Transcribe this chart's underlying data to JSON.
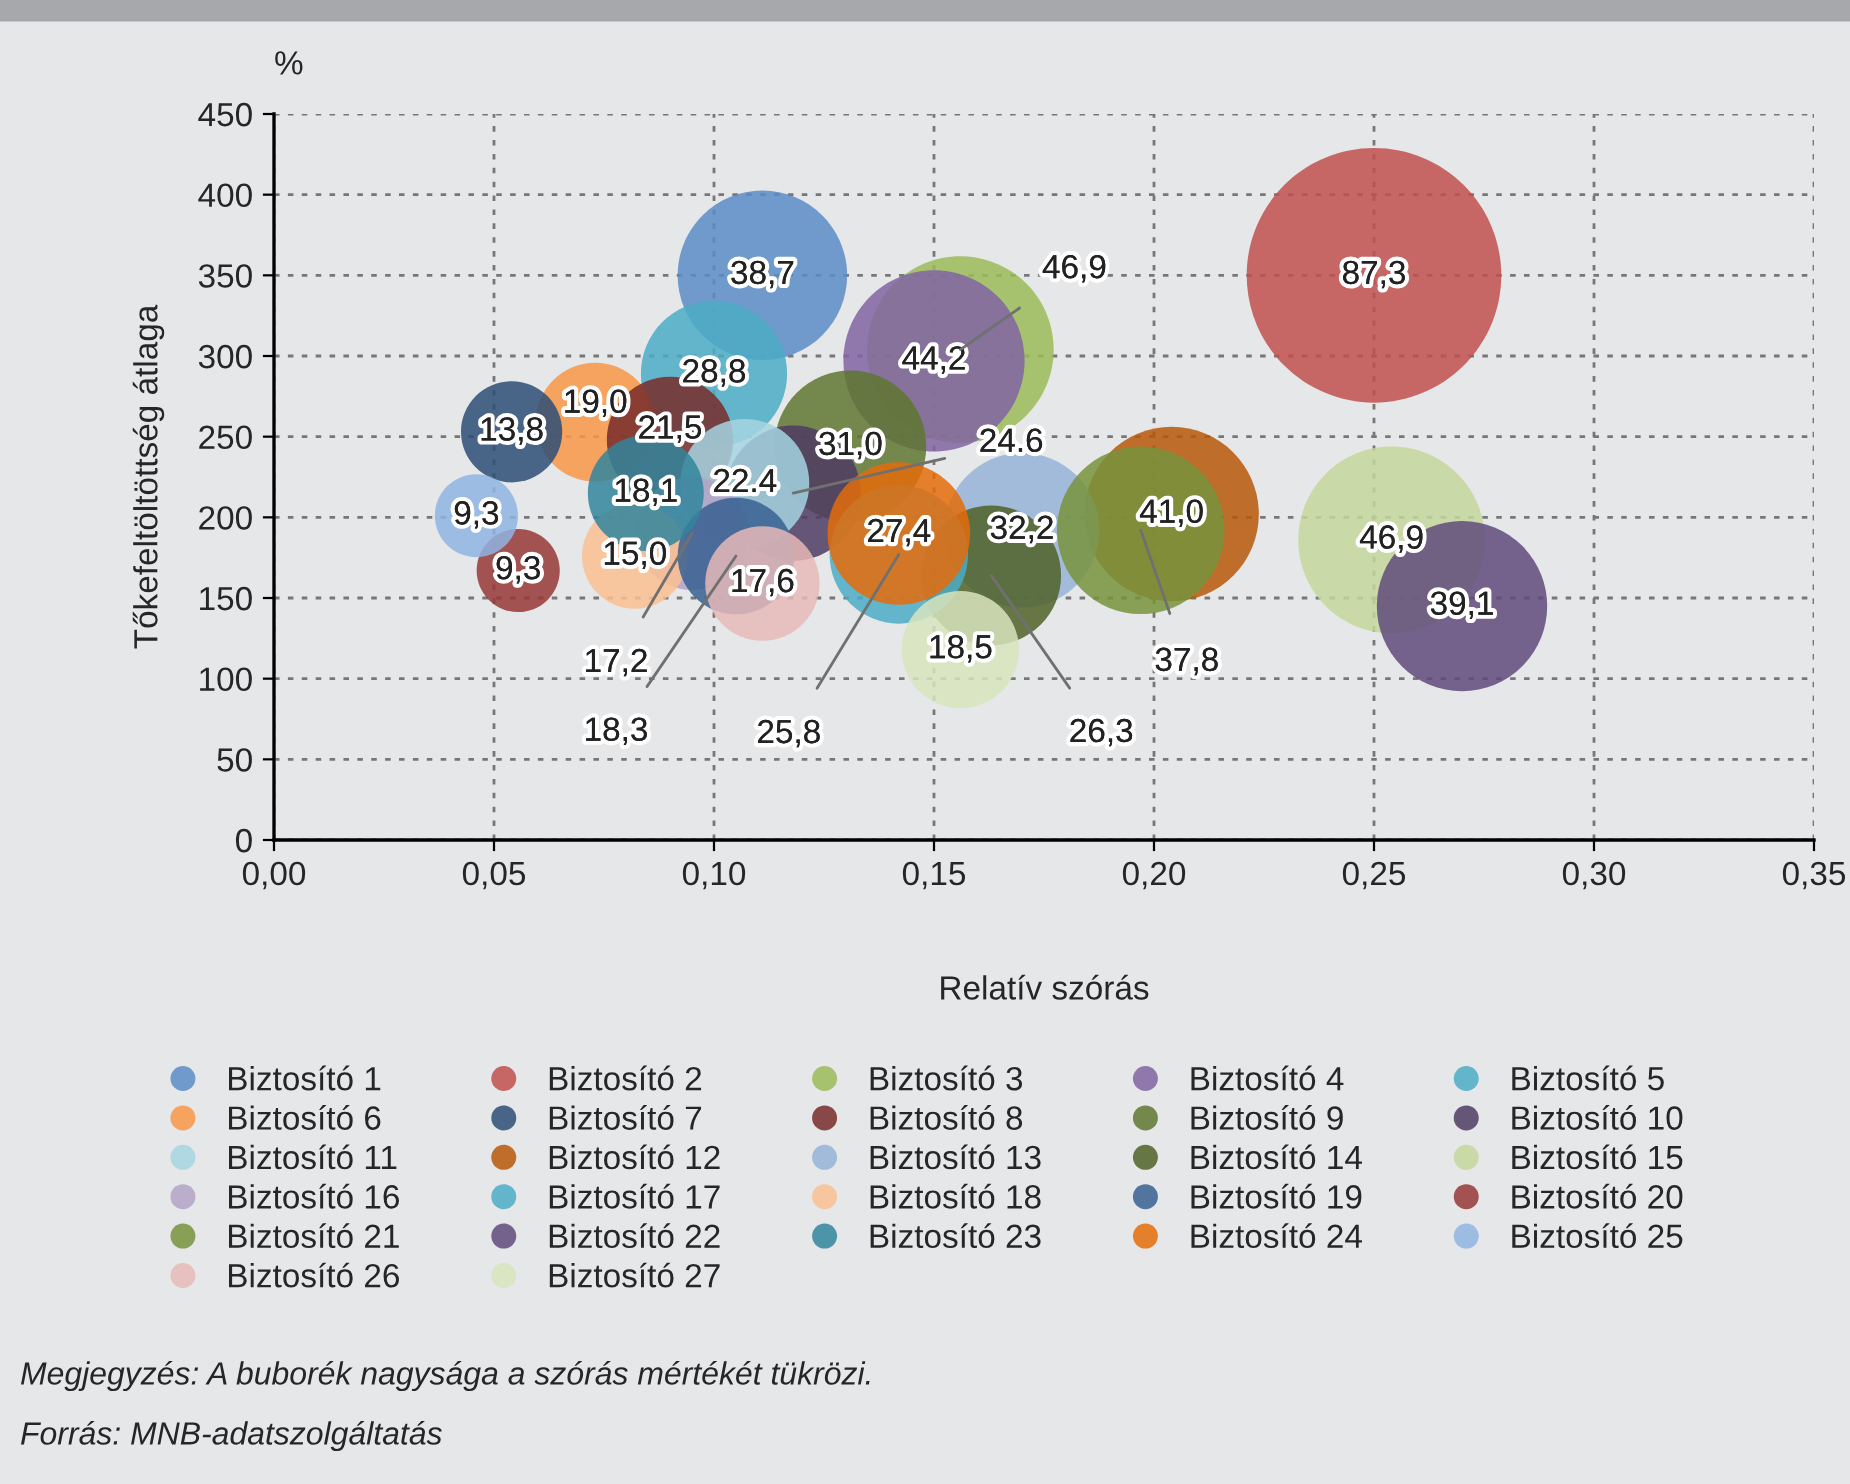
{
  "chart_data": {
    "type": "bubble",
    "xlabel": "Relatív szórás",
    "ylabel": "Tőkefeltöltöttség átlaga",
    "xlim": [
      0,
      0.35
    ],
    "xticks": [
      {
        "value": 0,
        "label": "0,00"
      },
      {
        "value": 0.05,
        "label": "0,05"
      },
      {
        "value": 0.1,
        "label": "0,10"
      },
      {
        "value": 0.15,
        "label": "0,15"
      },
      {
        "value": 0.2,
        "label": "0,20"
      },
      {
        "value": 0.25,
        "label": "0,25"
      },
      {
        "value": 0.3,
        "label": "0,30"
      },
      {
        "value": 0.35,
        "label": "0,35"
      }
    ],
    "ylim": [
      0,
      450
    ],
    "yticks": [
      0,
      50,
      100,
      150,
      200,
      250,
      300,
      350,
      400,
      450
    ],
    "grid": true,
    "legend": "bottom",
    "marker": "circle",
    "series": [
      {
        "name": "Biztosító 1",
        "color": "#5b8cc6",
        "x": [
          0.111
        ],
        "values": [
          350
        ],
        "sizes": [
          38.7
        ],
        "value_labels": [
          "38,7"
        ]
      },
      {
        "name": "Biztosító 2",
        "color": "#c0504d",
        "x": [
          0.25
        ],
        "values": [
          350
        ],
        "sizes": [
          87.3
        ],
        "value_labels": [
          "87,3"
        ]
      },
      {
        "name": "Biztosító 3",
        "color": "#9bbb59",
        "x": [
          0.156
        ],
        "values": [
          304
        ],
        "sizes": [
          46.9
        ],
        "value_labels": [
          "46,9"
        ]
      },
      {
        "name": "Biztosító 4",
        "color": "#8064a2",
        "x": [
          0.15
        ],
        "values": [
          297
        ],
        "sizes": [
          44.2
        ],
        "value_labels": [
          "44,2"
        ]
      },
      {
        "name": "Biztosító 5",
        "color": "#4bacc6",
        "x": [
          0.1
        ],
        "values": [
          289
        ],
        "sizes": [
          28.8
        ],
        "value_labels": [
          "28,8"
        ]
      },
      {
        "name": "Biztosító 6",
        "color": "#f79646",
        "x": [
          0.073
        ],
        "values": [
          259
        ],
        "sizes": [
          19.0
        ],
        "value_labels": [
          "19,0"
        ]
      },
      {
        "name": "Biztosító 7",
        "color": "#2c4d75",
        "x": [
          0.054
        ],
        "values": [
          253
        ],
        "sizes": [
          13.8
        ],
        "value_labels": [
          "13,8"
        ]
      },
      {
        "name": "Biztosító 8",
        "color": "#772c2a",
        "x": [
          0.09
        ],
        "values": [
          248
        ],
        "sizes": [
          21.5
        ],
        "value_labels": [
          "21,5"
        ]
      },
      {
        "name": "Biztosító 9",
        "color": "#5f7530",
        "x": [
          0.131
        ],
        "values": [
          244
        ],
        "sizes": [
          31.0
        ],
        "value_labels": [
          "31,0"
        ]
      },
      {
        "name": "Biztosító 10",
        "color": "#4d3b62",
        "x": [
          0.118
        ],
        "values": [
          215
        ],
        "sizes": [
          24.6
        ],
        "value_labels": [
          "24.6"
        ]
      },
      {
        "name": "Biztosító 11",
        "color": "#a5d5e2",
        "x": [
          0.107
        ],
        "values": [
          221
        ],
        "sizes": [
          22.4
        ],
        "value_labels": [
          "22.4"
        ]
      },
      {
        "name": "Biztosító 12",
        "color": "#b65708",
        "x": [
          0.204
        ],
        "values": [
          202
        ],
        "sizes": [
          41.0
        ],
        "value_labels": [
          "41,0"
        ]
      },
      {
        "name": "Biztosító 13",
        "color": "#95b3d7",
        "x": [
          0.17
        ],
        "values": [
          192
        ],
        "sizes": [
          32.2
        ],
        "value_labels": [
          "32,2"
        ]
      },
      {
        "name": "Biztosító 14",
        "color": "#4f6228",
        "x": [
          0.163
        ],
        "values": [
          164
        ],
        "sizes": [
          26.3
        ],
        "value_labels": [
          "26,3"
        ]
      },
      {
        "name": "Biztosító 15",
        "color": "#c3d69b",
        "x": [
          0.254
        ],
        "values": [
          186
        ],
        "sizes": [
          46.9
        ],
        "value_labels": [
          "46,9"
        ]
      },
      {
        "name": "Biztosító 16",
        "color": "#b3a2c7",
        "x": [
          0.095
        ],
        "values": [
          190
        ],
        "sizes": [
          17.2
        ],
        "value_labels": [
          "17,2"
        ]
      },
      {
        "name": "Biztosító 17",
        "color": "#4bacc6",
        "x": [
          0.142
        ],
        "values": [
          177
        ],
        "sizes": [
          25.8
        ],
        "value_labels": [
          "25,8"
        ]
      },
      {
        "name": "Biztosító 18",
        "color": "#fac090",
        "x": [
          0.082
        ],
        "values": [
          176
        ],
        "sizes": [
          15.0
        ],
        "value_labels": [
          "15,0"
        ]
      },
      {
        "name": "Biztosító 19",
        "color": "#376092",
        "x": [
          0.105
        ],
        "values": [
          176
        ],
        "sizes": [
          18.3
        ],
        "value_labels": [
          "18,3"
        ]
      },
      {
        "name": "Biztosító 20",
        "color": "#953735",
        "x": [
          0.0555
        ],
        "values": [
          167
        ],
        "sizes": [
          9.3
        ],
        "value_labels": [
          "9,3"
        ]
      },
      {
        "name": "Biztosító 21",
        "color": "#77933c",
        "x": [
          0.197
        ],
        "values": [
          192
        ],
        "sizes": [
          37.8
        ],
        "value_labels": [
          "37,8"
        ]
      },
      {
        "name": "Biztosító 22",
        "color": "#604a7b",
        "x": [
          0.27
        ],
        "values": [
          145
        ],
        "sizes": [
          39.1
        ],
        "value_labels": [
          "39,1"
        ]
      },
      {
        "name": "Biztosító 23",
        "color": "#31859c",
        "x": [
          0.0845
        ],
        "values": [
          215
        ],
        "sizes": [
          18.1
        ],
        "value_labels": [
          "18,1"
        ]
      },
      {
        "name": "Biztosító 24",
        "color": "#e46c0a",
        "x": [
          0.142
        ],
        "values": [
          190
        ],
        "sizes": [
          27.4
        ],
        "value_labels": [
          "27,4"
        ]
      },
      {
        "name": "Biztosító 25",
        "color": "#8eb4e3",
        "x": [
          0.046
        ],
        "values": [
          201
        ],
        "sizes": [
          9.3
        ],
        "value_labels": [
          "9,3"
        ]
      },
      {
        "name": "Biztosító 26",
        "color": "#e6b9b8",
        "x": [
          0.111
        ],
        "values": [
          159
        ],
        "sizes": [
          17.6
        ],
        "value_labels": [
          "17,6"
        ]
      },
      {
        "name": "Biztosító 27",
        "color": "#d7e4bd",
        "x": [
          0.156
        ],
        "values": [
          118
        ],
        "sizes": [
          18.5
        ],
        "value_labels": [
          "18,5"
        ]
      }
    ],
    "annotations": [
      "%",
      "Megjegyzés: A buborék nagysága a szórás mértékét tükrözi.",
      "Forrás: MNB-adatszolgáltatás"
    ]
  }
}
